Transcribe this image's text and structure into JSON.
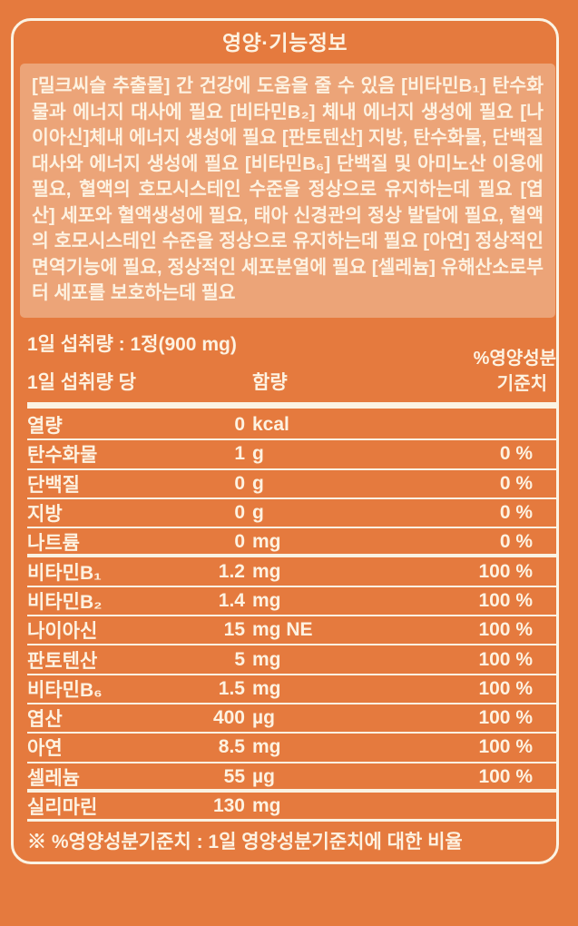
{
  "title": "영양·기능정보",
  "description": "[밀크씨슬 추출물] 간 건강에 도움을 줄 수 있음 [비타민B₁] 탄수화물과 에너지 대사에 필요 [비타민B₂] 체내 에너지 생성에 필요 [나이아신]체내 에너지 생성에 필요 [판토텐산] 지방, 탄수화물, 단백질 대사와 에너지 생성에 필요 [비타민B₆] 단백질 및 아미노산 이용에 필요, 혈액의 호모시스테인 수준을 정상으로 유지하는데 필요 [엽산] 세포와 혈액생성에 필요, 태아 신경관의 정상 발달에 필요, 혈액의 호모시스테인 수준을 정상으로 유지하는데 필요 [아연] 정상적인 면역기능에 필요, 정상적인 세포분열에 필요 [셀레늄] 유해산소로부터 세포를 보호하는데 필요",
  "serving": {
    "daily_intake_label": "1일 섭취량 : 1정(900 mg)",
    "per_serving_label": "1일 섭취량 당",
    "amount_label": "함량",
    "percent_label_line1": "%영양성분",
    "percent_label_line2": "기준치"
  },
  "table": {
    "rows": [
      {
        "name": "열량",
        "amount": "0",
        "unit": "kcal",
        "percent": ""
      },
      {
        "name": "탄수화물",
        "amount": "1",
        "unit": "g",
        "percent": "0 %"
      },
      {
        "name": "단백질",
        "amount": "0",
        "unit": "g",
        "percent": "0 %"
      },
      {
        "name": "지방",
        "amount": "0",
        "unit": "g",
        "percent": "0 %"
      },
      {
        "name": "나트륨",
        "amount": "0",
        "unit": "mg",
        "percent": "0 %"
      },
      {
        "name": "비타민B₁",
        "amount": "1.2",
        "unit": "mg",
        "percent": "100 %"
      },
      {
        "name": "비타민B₂",
        "amount": "1.4",
        "unit": "mg",
        "percent": "100 %"
      },
      {
        "name": "나이아신",
        "amount": "15",
        "unit": "mg NE",
        "percent": "100 %"
      },
      {
        "name": "판토텐산",
        "amount": "5",
        "unit": "mg",
        "percent": "100 %"
      },
      {
        "name": "비타민B₆",
        "amount": "1.5",
        "unit": "mg",
        "percent": "100 %"
      },
      {
        "name": "엽산",
        "amount": "400",
        "unit": "µg",
        "percent": "100 %"
      },
      {
        "name": "아연",
        "amount": "8.5",
        "unit": "mg",
        "percent": "100 %"
      },
      {
        "name": "셀레늄",
        "amount": "55",
        "unit": "µg",
        "percent": "100 %"
      },
      {
        "name": "실리마린",
        "amount": "130",
        "unit": "mg",
        "percent": ""
      }
    ],
    "thick_divider_after": [
      4,
      12
    ]
  },
  "footnote": "※ %영양성분기준치 : 1일 영양성분기준치에 대한 비율",
  "colors": {
    "background": "#E57A3E",
    "description_panel": "#ECA478",
    "text": "#FDF2E1",
    "divider_line": "#FAF2E2"
  }
}
